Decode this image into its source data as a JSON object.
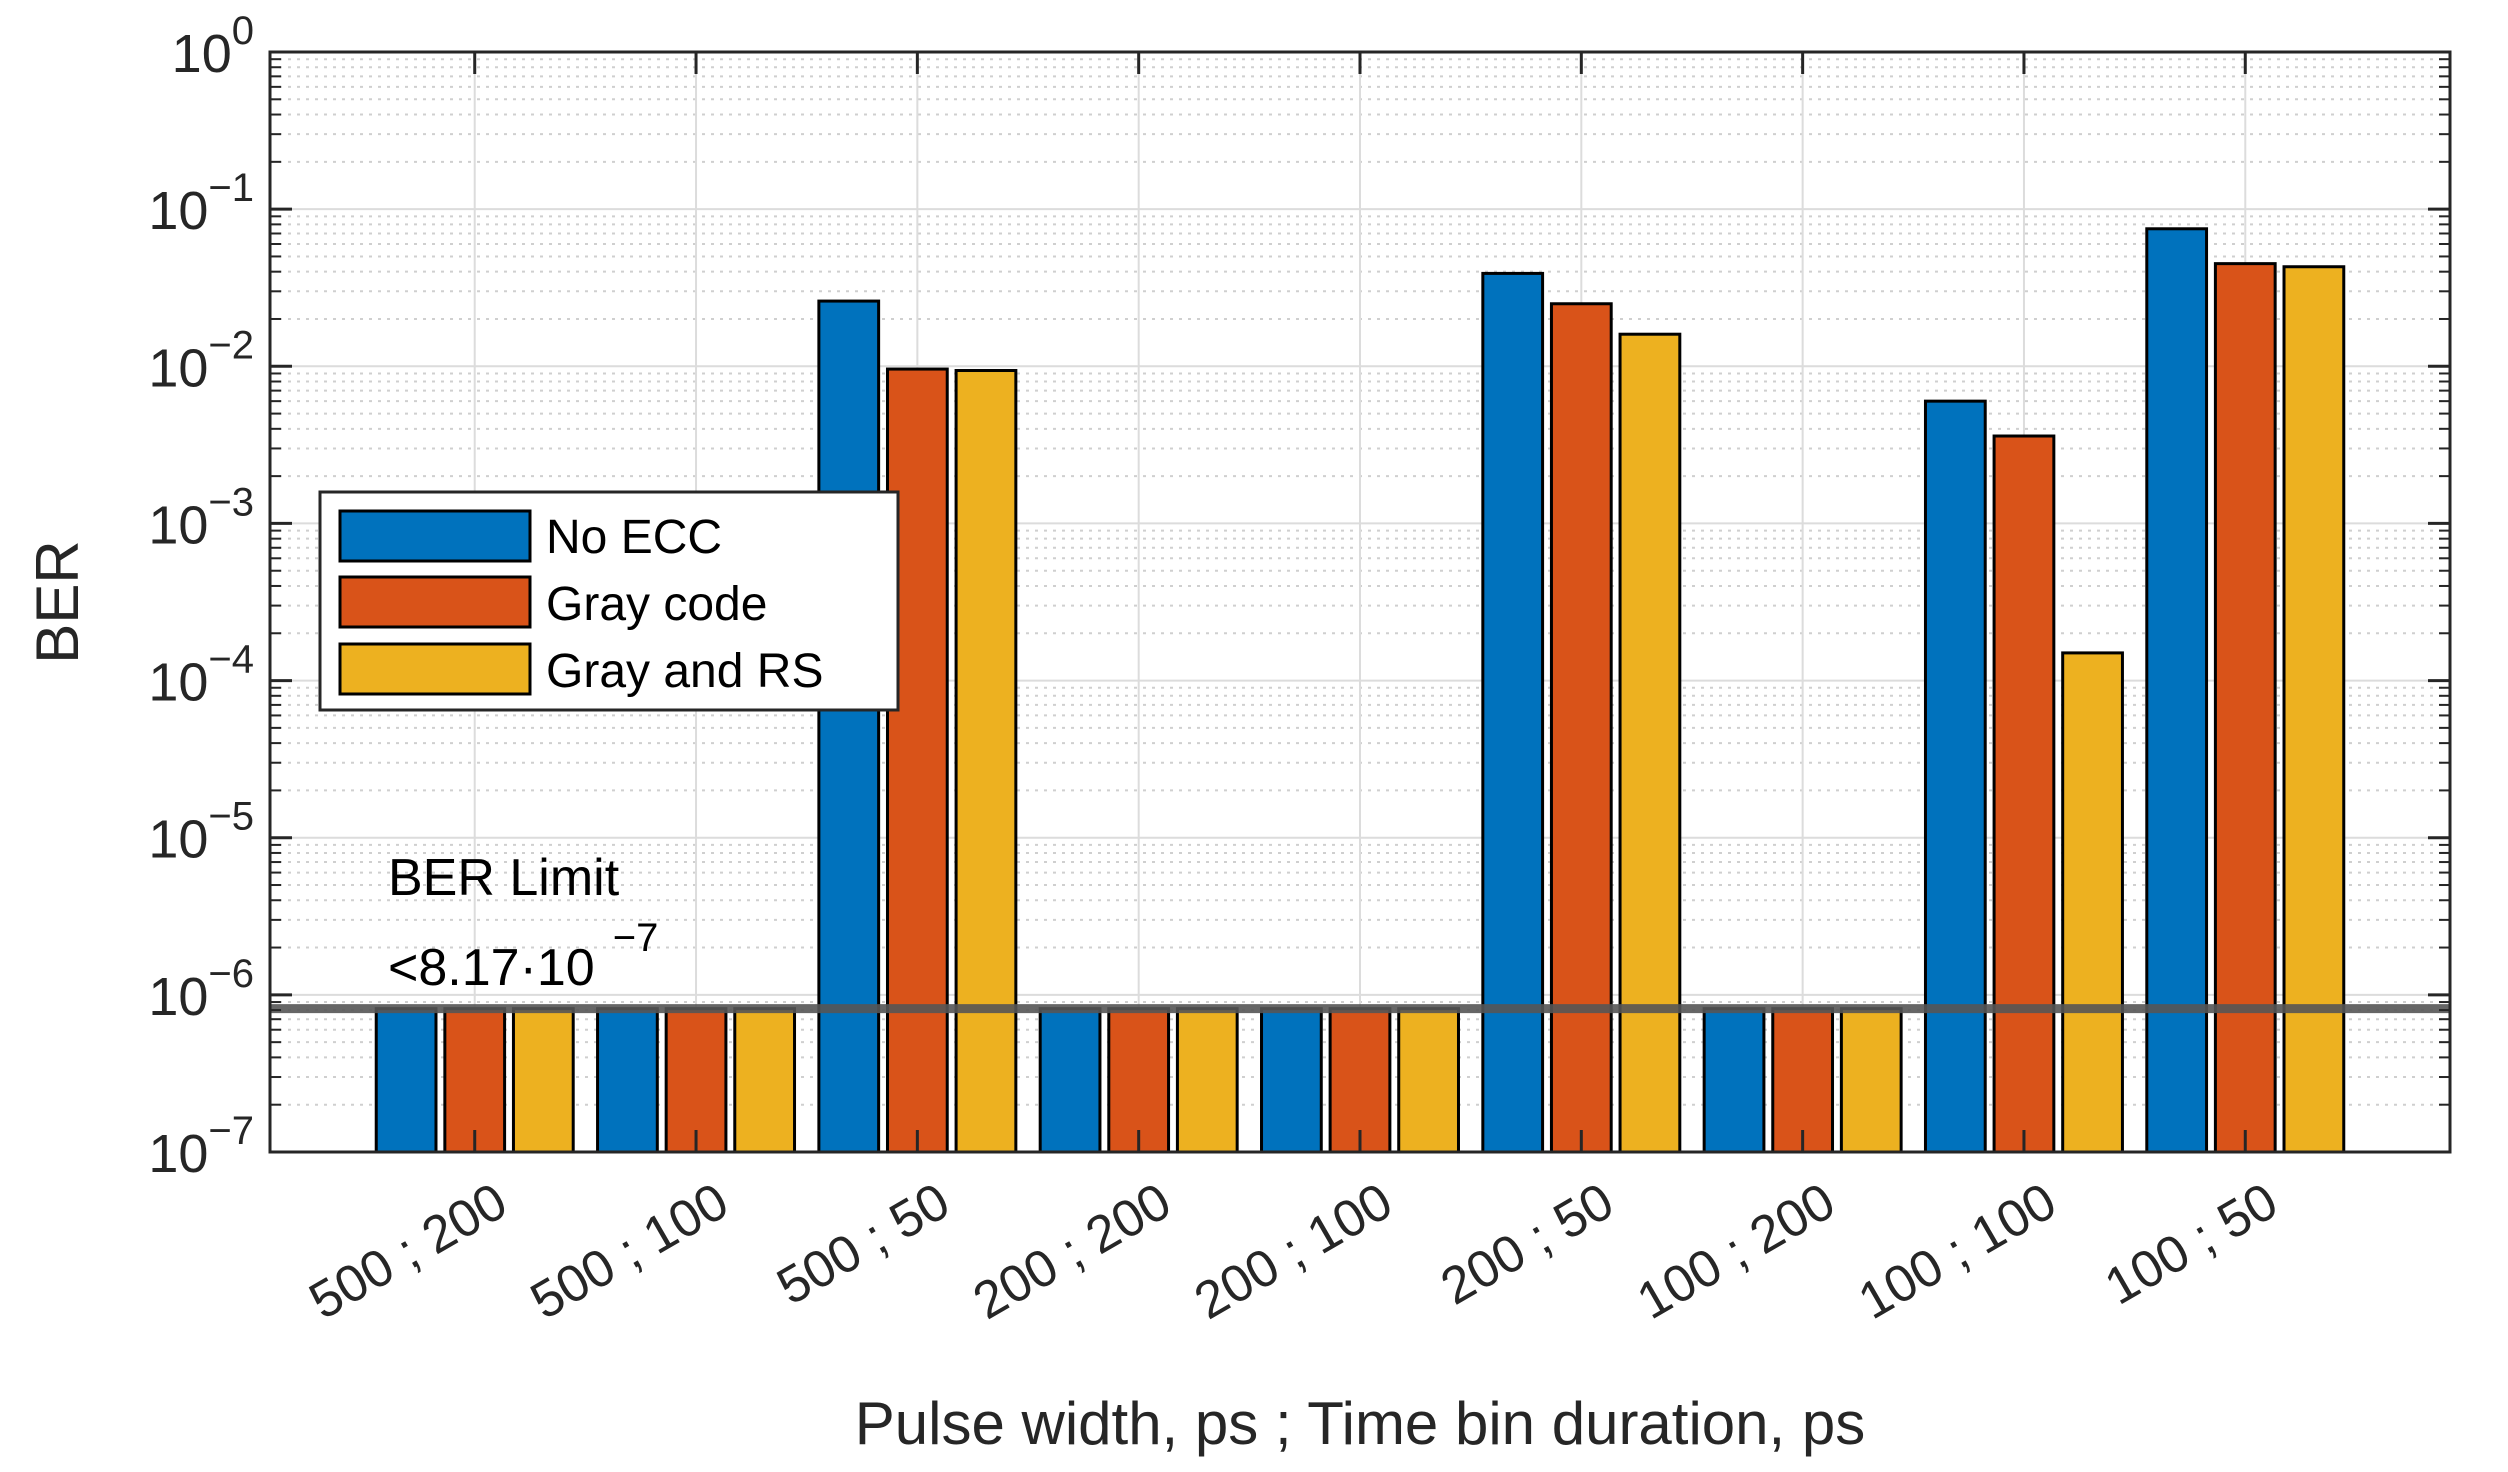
{
  "chart_data": {
    "type": "bar",
    "yscale": "log",
    "categories": [
      "500 ; 200",
      "500 ; 100",
      "500 ; 50",
      "200 ; 200",
      "200 ; 100",
      "200 ; 50",
      "100 ; 200",
      "100 ; 100",
      "100 ; 50"
    ],
    "series": [
      {
        "name": "No ECC",
        "color": "#0072BD",
        "values": [
          8.17e-07,
          8.17e-07,
          0.026,
          8.17e-07,
          8.17e-07,
          0.039,
          8.17e-07,
          0.006,
          0.075
        ]
      },
      {
        "name": "Gray code",
        "color": "#D95319",
        "values": [
          8.17e-07,
          8.17e-07,
          0.0096,
          8.17e-07,
          8.17e-07,
          0.025,
          8.17e-07,
          0.0036,
          0.045
        ]
      },
      {
        "name": "Gray and RS",
        "color": "#EDB120",
        "values": [
          8.17e-07,
          8.17e-07,
          0.0094,
          8.17e-07,
          8.17e-07,
          0.016,
          8.17e-07,
          0.00015,
          0.043
        ]
      }
    ],
    "xlabel": "Pulse width, ps ; Time bin duration, ps",
    "ylabel": "BER",
    "ylim": [
      1e-07,
      1
    ],
    "yticks": [
      {
        "base": "10",
        "exp": "−7"
      },
      {
        "base": "10",
        "exp": "−6"
      },
      {
        "base": "10",
        "exp": "−5"
      },
      {
        "base": "10",
        "exp": "−4"
      },
      {
        "base": "10",
        "exp": "−3"
      },
      {
        "base": "10",
        "exp": "−2"
      },
      {
        "base": "10",
        "exp": "−1"
      },
      {
        "base": "10",
        "exp": "0"
      }
    ],
    "grid": true,
    "legend_position": "center-left",
    "limit_line": {
      "value": 8.17e-07,
      "color": "#555555"
    },
    "annotation": {
      "line1": "BER Limit",
      "line2": "<8.17·10",
      "exponent": "−7"
    }
  }
}
